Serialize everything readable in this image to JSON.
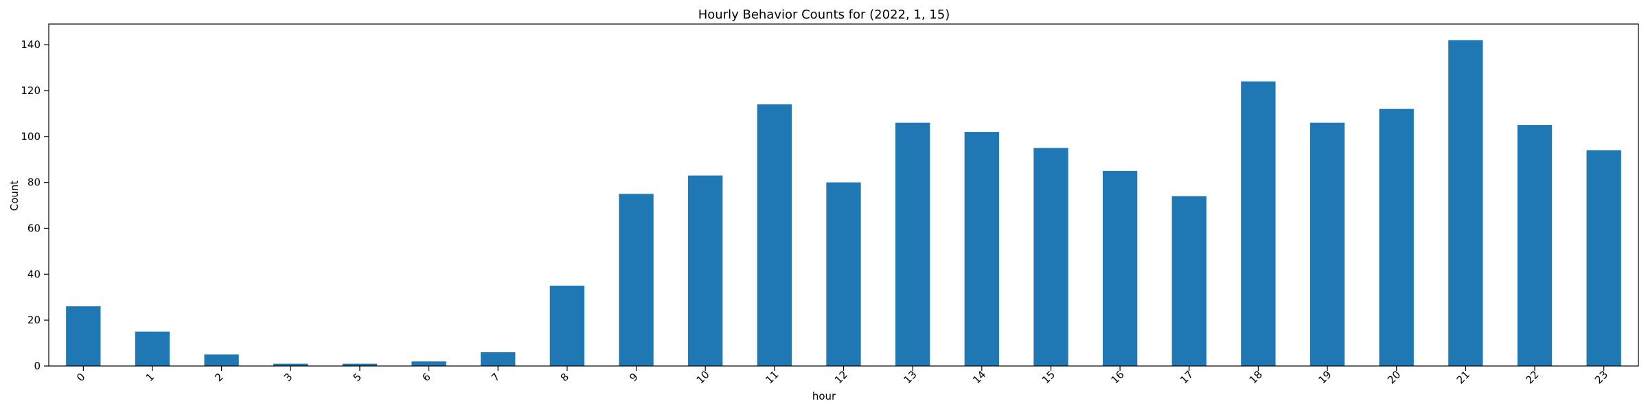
{
  "chart_data": {
    "type": "bar",
    "title": "Hourly Behavior Counts for (2022, 1, 15)",
    "xlabel": "hour",
    "ylabel": "Count",
    "categories": [
      "0",
      "1",
      "2",
      "3",
      "5",
      "6",
      "7",
      "8",
      "9",
      "10",
      "11",
      "12",
      "13",
      "14",
      "15",
      "16",
      "17",
      "18",
      "19",
      "20",
      "21",
      "22",
      "23"
    ],
    "values": [
      26,
      15,
      5,
      1,
      1,
      2,
      6,
      35,
      75,
      83,
      114,
      80,
      106,
      102,
      95,
      85,
      74,
      124,
      106,
      112,
      142,
      105,
      94
    ],
    "ylim": [
      0,
      149
    ],
    "yticks": [
      0,
      20,
      40,
      60,
      80,
      100,
      120,
      140
    ],
    "grid": false,
    "bar_color": "#1f77b4",
    "x_tick_rotation": -45
  }
}
